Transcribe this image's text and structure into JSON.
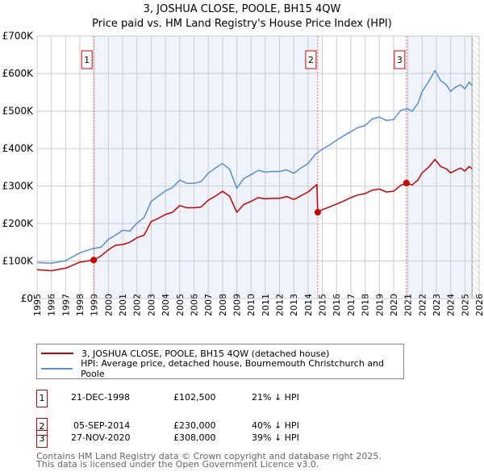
{
  "title": "3, JOSHUA CLOSE, POOLE, BH15 4QW",
  "subtitle": "Price paid vs. HM Land Registry's House Price Index (HPI)",
  "colors": {
    "price": "#cc0000",
    "hpi": "#5b8dd6",
    "shade": "#eef3fc",
    "grid": "#cccccc"
  },
  "chart_data": {
    "type": "line",
    "title": "Price paid vs. HM Land Registry's House Price Index (HPI)",
    "xlabel": "",
    "ylabel": "",
    "xlim": [
      1995,
      2026
    ],
    "ylim": [
      0,
      700000
    ],
    "y_ticks": [
      0,
      100000,
      200000,
      300000,
      400000,
      500000,
      600000,
      700000
    ],
    "y_tick_labels": [
      "£0",
      "£100K",
      "£200K",
      "£300K",
      "£400K",
      "£500K",
      "£600K",
      "£700K"
    ],
    "x_ticks": [
      "1995",
      "1996",
      "1997",
      "1998",
      "1999",
      "2000",
      "2001",
      "2002",
      "2003",
      "2004",
      "2005",
      "2006",
      "2007",
      "2008",
      "2009",
      "2010",
      "2011",
      "2012",
      "2013",
      "2014",
      "2015",
      "2016",
      "2017",
      "2018",
      "2019",
      "2020",
      "2021",
      "2022",
      "2023",
      "2024",
      "2025",
      "2026"
    ],
    "grid": true,
    "legend_placement": "below",
    "series": [
      {
        "name": "3, JOSHUA CLOSE, POOLE, BH15 4QW (detached house)",
        "points": [
          [
            1995,
            77000
          ],
          [
            1996,
            74000
          ],
          [
            1997,
            81000
          ],
          [
            1998,
            97000
          ],
          [
            1998.97,
            102500
          ],
          [
            1999.5,
            114000
          ],
          [
            2000,
            130000
          ],
          [
            2000.5,
            142000
          ],
          [
            2001,
            144000
          ],
          [
            2001.5,
            150000
          ],
          [
            2002,
            162000
          ],
          [
            2002.5,
            169000
          ],
          [
            2003,
            205000
          ],
          [
            2003.5,
            214000
          ],
          [
            2004,
            224000
          ],
          [
            2004.5,
            230000
          ],
          [
            2005,
            248000
          ],
          [
            2005.5,
            242000
          ],
          [
            2006,
            242000
          ],
          [
            2006.5,
            244000
          ],
          [
            2007,
            262000
          ],
          [
            2007.5,
            273000
          ],
          [
            2008,
            286000
          ],
          [
            2008.5,
            273000
          ],
          [
            2009,
            230000
          ],
          [
            2009.5,
            251000
          ],
          [
            2010,
            259000
          ],
          [
            2010.5,
            269000
          ],
          [
            2011,
            266000
          ],
          [
            2011.5,
            267000
          ],
          [
            2012,
            267000
          ],
          [
            2012.5,
            272000
          ],
          [
            2013,
            264000
          ],
          [
            2013.5,
            274000
          ],
          [
            2014,
            284000
          ],
          [
            2014.62,
            304000
          ],
          [
            2014.68,
            230000
          ],
          [
            2015,
            237000
          ],
          [
            2015.5,
            244000
          ],
          [
            2016,
            252000
          ],
          [
            2016.5,
            260000
          ],
          [
            2017,
            269000
          ],
          [
            2017.5,
            276000
          ],
          [
            2018,
            280000
          ],
          [
            2018.5,
            289000
          ],
          [
            2019,
            292000
          ],
          [
            2019.5,
            284000
          ],
          [
            2020,
            286000
          ],
          [
            2020.5,
            302000
          ],
          [
            2020.9,
            308000
          ],
          [
            2021.3,
            303000
          ],
          [
            2021.7,
            316000
          ],
          [
            2022,
            335000
          ],
          [
            2022.5,
            352000
          ],
          [
            2022.9,
            371000
          ],
          [
            2023.3,
            352000
          ],
          [
            2023.7,
            346000
          ],
          [
            2024,
            335000
          ],
          [
            2024.3,
            341000
          ],
          [
            2024.7,
            348000
          ],
          [
            2025,
            340000
          ],
          [
            2025.3,
            352000
          ],
          [
            2025.5,
            346000
          ]
        ]
      },
      {
        "name": "HPI: Average price, detached house, Bournemouth Christchurch and Poole",
        "points": [
          [
            1995,
            96000
          ],
          [
            1996,
            94000
          ],
          [
            1997,
            101000
          ],
          [
            1998,
            122000
          ],
          [
            1998.9,
            133000
          ],
          [
            1999.5,
            137000
          ],
          [
            2000,
            158000
          ],
          [
            2000.5,
            169000
          ],
          [
            2001,
            182000
          ],
          [
            2001.5,
            180000
          ],
          [
            2002,
            201000
          ],
          [
            2002.5,
            216000
          ],
          [
            2003,
            259000
          ],
          [
            2003.5,
            273000
          ],
          [
            2004,
            287000
          ],
          [
            2004.5,
            296000
          ],
          [
            2005,
            316000
          ],
          [
            2005.5,
            307000
          ],
          [
            2006,
            307000
          ],
          [
            2006.5,
            312000
          ],
          [
            2007,
            334000
          ],
          [
            2007.5,
            348000
          ],
          [
            2008,
            360000
          ],
          [
            2008.5,
            345000
          ],
          [
            2009,
            294000
          ],
          [
            2009.5,
            320000
          ],
          [
            2010,
            330000
          ],
          [
            2010.5,
            342000
          ],
          [
            2011,
            337000
          ],
          [
            2011.5,
            339000
          ],
          [
            2012,
            339000
          ],
          [
            2012.5,
            343000
          ],
          [
            2013,
            334000
          ],
          [
            2013.5,
            348000
          ],
          [
            2014,
            360000
          ],
          [
            2014.5,
            384000
          ],
          [
            2015,
            398000
          ],
          [
            2015.5,
            409000
          ],
          [
            2016,
            422000
          ],
          [
            2016.5,
            434000
          ],
          [
            2017,
            445000
          ],
          [
            2017.5,
            456000
          ],
          [
            2018,
            461000
          ],
          [
            2018.5,
            479000
          ],
          [
            2019,
            484000
          ],
          [
            2019.5,
            475000
          ],
          [
            2020,
            477000
          ],
          [
            2020.5,
            502000
          ],
          [
            2021,
            506000
          ],
          [
            2021.3,
            499000
          ],
          [
            2021.7,
            520000
          ],
          [
            2022,
            552000
          ],
          [
            2022.5,
            581000
          ],
          [
            2022.9,
            608000
          ],
          [
            2023.3,
            581000
          ],
          [
            2023.7,
            570000
          ],
          [
            2024,
            552000
          ],
          [
            2024.3,
            563000
          ],
          [
            2024.7,
            570000
          ],
          [
            2025,
            559000
          ],
          [
            2025.3,
            577000
          ],
          [
            2025.5,
            568000
          ]
        ]
      }
    ],
    "sales": [
      {
        "label": "1",
        "x": 1998.97,
        "y": 102500
      },
      {
        "label": "2",
        "x": 2014.68,
        "y": 230000
      },
      {
        "label": "3",
        "x": 2020.9,
        "y": 308000
      }
    ],
    "shaded_ranges": [
      [
        1998.97,
        2014.68
      ],
      [
        2020.9,
        2025.5
      ]
    ],
    "hatched_range": [
      2025.5,
      2026
    ]
  },
  "legend": [
    {
      "label": "3, JOSHUA CLOSE, POOLE, BH15 4QW (detached house)"
    },
    {
      "label": "HPI: Average price, detached house, Bournemouth Christchurch and Poole"
    }
  ],
  "transactions": [
    {
      "num": "1",
      "date": "21-DEC-1998",
      "price": "£102,500",
      "hpi": "21% ↓ HPI"
    },
    {
      "num": "2",
      "date": "05-SEP-2014",
      "price": "£230,000",
      "hpi": "40% ↓ HPI"
    },
    {
      "num": "3",
      "date": "27-NOV-2020",
      "price": "£308,000",
      "hpi": "39% ↓ HPI"
    }
  ],
  "footer": {
    "line1": "Contains HM Land Registry data © Crown copyright and database right 2025.",
    "line2": "This data is licensed under the Open Government Licence v3.0."
  }
}
